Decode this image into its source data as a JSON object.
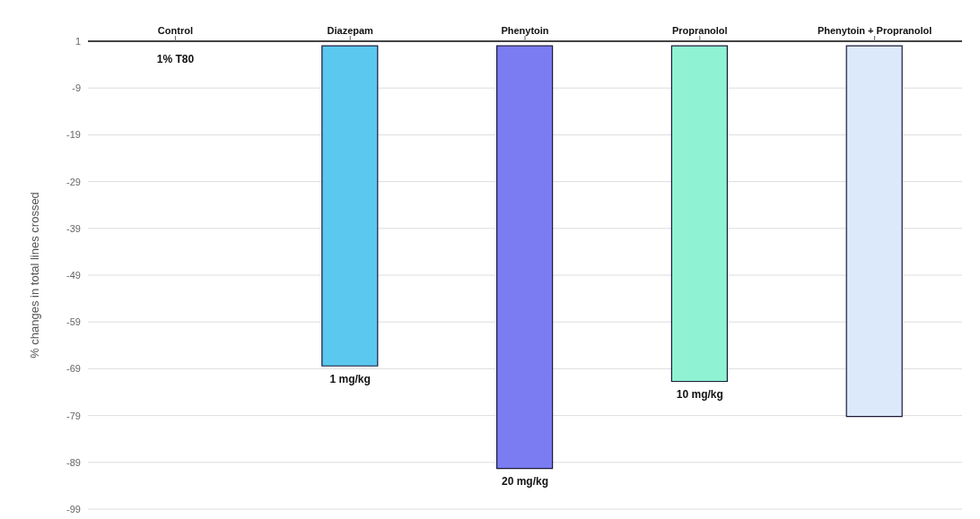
{
  "chart_data": {
    "type": "bar",
    "categories": [
      "Control",
      "Diazepam",
      "Phenytoin",
      "Propranolol",
      "Phenytoin + Propranolol"
    ],
    "values": [
      0,
      -68.4,
      -90.3,
      -71.7,
      -79.2
    ],
    "colors": [
      "#5bc8ef",
      "#5bc8ef",
      "#7b7bf2",
      "#8ff2d2",
      "#dce9fb"
    ],
    "ylabel": "% changes in total lines crossed",
    "ylim": [
      -99,
      1
    ],
    "yticks": [
      1,
      -9,
      -19,
      -29,
      -39,
      -49,
      -59,
      -69,
      -79,
      -89,
      -99
    ],
    "grid": "y",
    "annotations": [
      "1% T80",
      "1 mg/kg",
      "20 mg/kg",
      "10 mg/kg"
    ]
  }
}
